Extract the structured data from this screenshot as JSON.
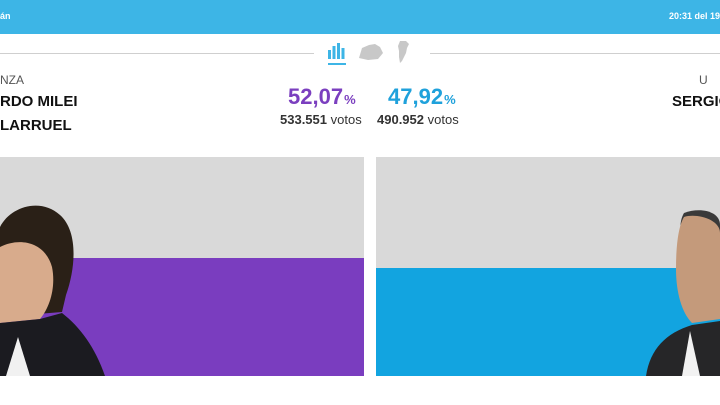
{
  "header": {
    "left_text": "án",
    "time_text": "20:31 del 19"
  },
  "view_icons": [
    "bar-chart-icon",
    "province-map-icon",
    "country-map-icon"
  ],
  "left": {
    "party": "NZA",
    "candidate_line1": "RDO MILEI",
    "candidate_line2": "LARRUEL",
    "percent": "52,07",
    "percent_sign": "%",
    "votes_number": "533.551",
    "votes_word": "votos",
    "share": 52.07,
    "color": "#7a3dbf"
  },
  "right": {
    "party": "U",
    "candidate_line1": "SERGIO",
    "percent": "47,92",
    "percent_sign": "%",
    "votes_number": "490.952",
    "votes_word": "votos",
    "share": 47.92,
    "color": "#12a4e0"
  },
  "colors": {
    "header": "#3db5e6",
    "panel_bg": "#d9d9d9"
  }
}
